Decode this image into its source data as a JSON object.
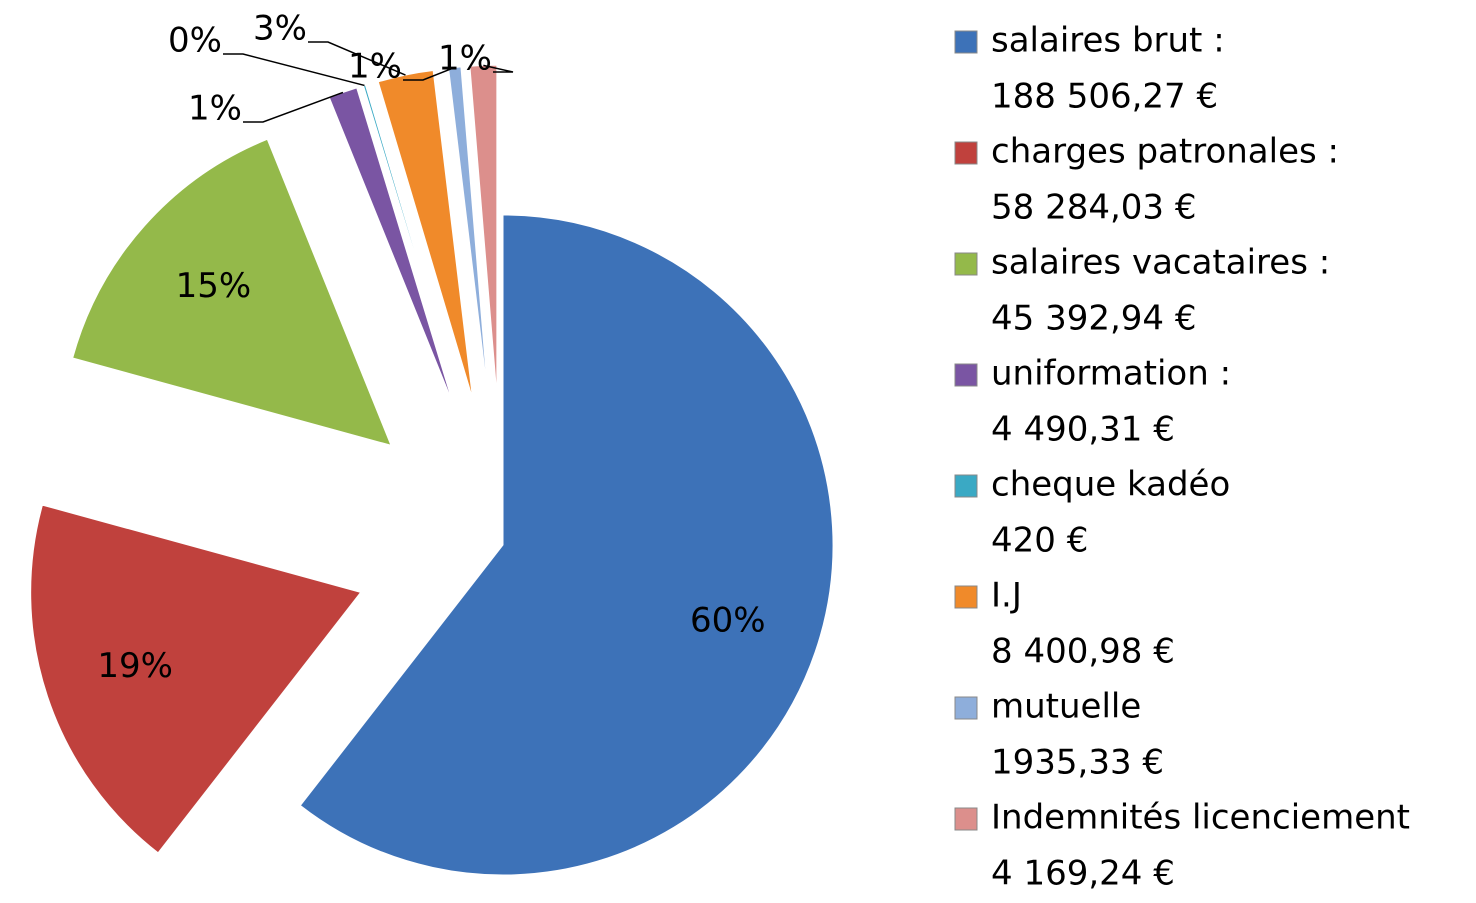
{
  "chart_data": {
    "type": "pie",
    "categories": [
      "salaires brut :",
      "charges patronales :",
      "salaires vacataires :",
      "uniformation :",
      "cheque kadéo",
      "I.J",
      "mutuelle",
      "Indemnités licenciement"
    ],
    "amounts": [
      "188 506,27 €",
      "58 284,03 €",
      "45 392,94 €",
      "4 490,31 €",
      "420 €",
      "8 400,98 €",
      "1935,33 €",
      "4 169,24 €"
    ],
    "values": [
      60.4,
      18.7,
      14.6,
      1.4,
      0.1,
      2.7,
      0.6,
      1.3
    ],
    "value_labels": [
      "60%",
      "19%",
      "15%",
      "1%",
      "0%",
      "3%",
      "1%",
      "1%"
    ],
    "colors": [
      "#3d72b8",
      "#c0413d",
      "#94b94a",
      "#7a55a3",
      "#3aa9c4",
      "#f08a2a",
      "#8eaedb",
      "#dc8f8c"
    ],
    "legend": "right"
  }
}
